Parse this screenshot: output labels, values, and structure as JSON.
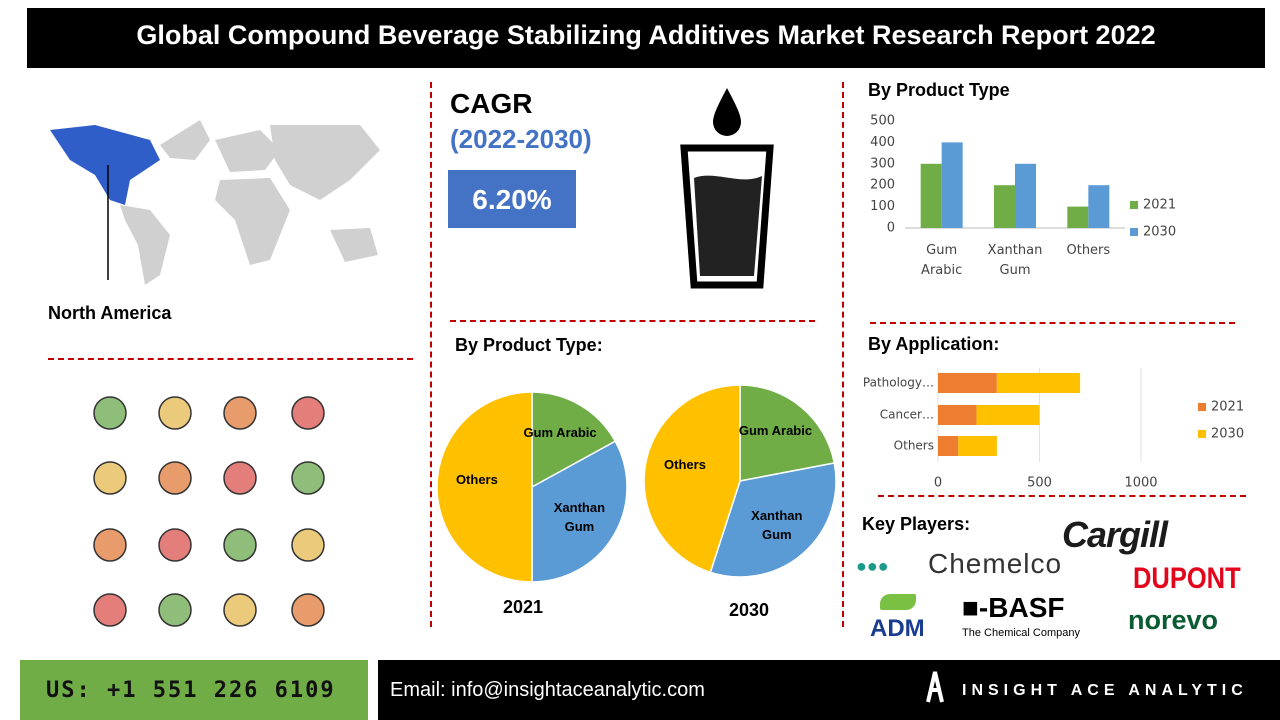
{
  "header": {
    "title": "Global Compound Beverage Stabilizing Additives Market Research Report 2022"
  },
  "region": {
    "label": "North America"
  },
  "cagr": {
    "title": "CAGR",
    "period": "(2022-2030)",
    "value": "6.20%"
  },
  "chart_data": [
    {
      "type": "bar",
      "title": "By Product Type",
      "categories": [
        "Gum Arabic",
        "Xanthan Gum",
        "Others"
      ],
      "series": [
        {
          "name": "2021",
          "color": "#70ad47",
          "values": [
            300,
            200,
            100
          ]
        },
        {
          "name": "2030",
          "color": "#5b9bd5",
          "values": [
            400,
            300,
            200
          ]
        }
      ],
      "ylim": [
        0,
        500
      ],
      "yticks": [
        0,
        100,
        200,
        300,
        400,
        500
      ],
      "grid": false,
      "legend": "right"
    },
    {
      "type": "pie",
      "title": "By Product Type:",
      "label": "2021",
      "categories": [
        "Gum Arabic",
        "Xanthan Gum",
        "Others"
      ],
      "values": [
        17,
        33,
        50
      ],
      "colors": [
        "#70ad47",
        "#5b9bd5",
        "#ffc000"
      ]
    },
    {
      "type": "pie",
      "label": "2030",
      "categories": [
        "Gum Arabic",
        "Xanthan Gum",
        "Others"
      ],
      "values": [
        22,
        33,
        45
      ],
      "colors": [
        "#70ad47",
        "#5b9bd5",
        "#ffc000"
      ]
    },
    {
      "type": "stacked-barh",
      "title": "By Application:",
      "categories": [
        "Pathology…",
        "Cancer…",
        "Others"
      ],
      "series": [
        {
          "name": "2021",
          "color": "#ed7d31",
          "values": [
            290,
            190,
            100
          ]
        },
        {
          "name": "2030",
          "color": "#ffc000",
          "values": [
            410,
            310,
            190
          ]
        }
      ],
      "xlim": [
        0,
        1000
      ],
      "xticks": [
        0,
        500,
        1000
      ],
      "grid": true,
      "legend": "right"
    }
  ],
  "key_players": {
    "title": "Key Players:",
    "logos": [
      "Chemelco",
      "Cargill",
      "DUPONT",
      "ADM",
      "BASF",
      "norevo"
    ],
    "basf_tagline": "The Chemical Company"
  },
  "footer": {
    "phone": "US: +1 551 226 6109",
    "email": "Email: info@insightaceanalytic.com",
    "brand": "INSIGHT ACE ANALYTIC"
  }
}
